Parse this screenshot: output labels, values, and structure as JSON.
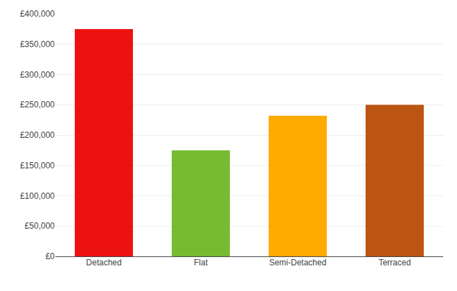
{
  "chart_data": {
    "type": "bar",
    "categories": [
      "Detached",
      "Flat",
      "Semi-Detached",
      "Terraced"
    ],
    "values": [
      375000,
      175000,
      232000,
      250000
    ],
    "colors": [
      "#ee1111",
      "#77bb33",
      "#ffaa00",
      "#bb5511"
    ],
    "ylim": [
      0,
      400000
    ],
    "yticks": [
      {
        "value": 0,
        "label": "£0"
      },
      {
        "value": 50000,
        "label": "£50,000"
      },
      {
        "value": 100000,
        "label": "£100,000"
      },
      {
        "value": 150000,
        "label": "£150,000"
      },
      {
        "value": 200000,
        "label": "£200,000"
      },
      {
        "value": 250000,
        "label": "£250,000"
      },
      {
        "value": 300000,
        "label": "£300,000"
      },
      {
        "value": 350000,
        "label": "£350,000"
      },
      {
        "value": 400000,
        "label": "£400,000"
      }
    ],
    "grid": true
  }
}
